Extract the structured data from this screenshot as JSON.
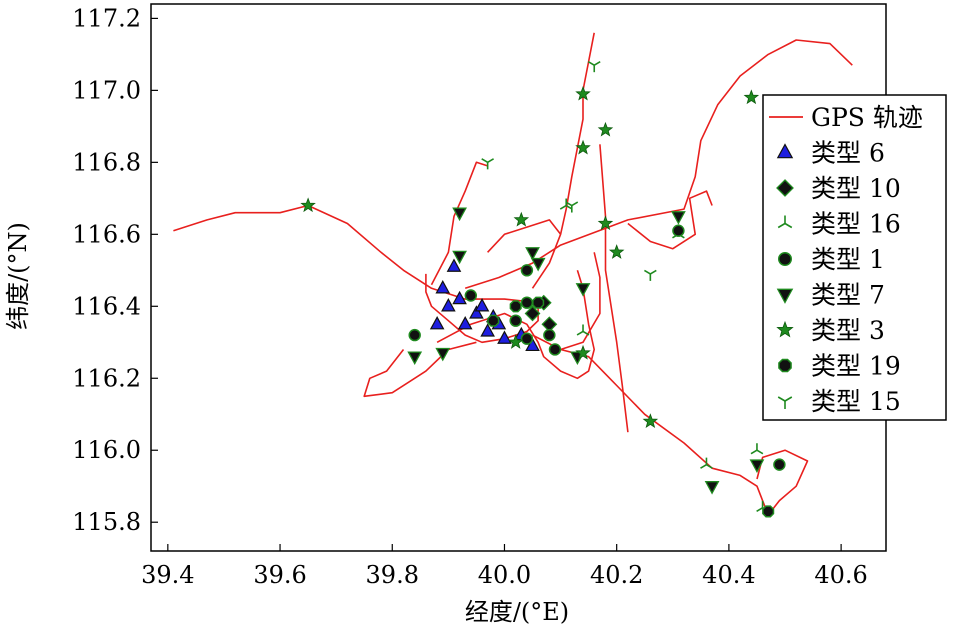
{
  "chart_data": {
    "type": "scatter",
    "xlabel": "经度/(°E)",
    "ylabel": "纬度/(°N)",
    "xlim": [
      39.37,
      40.68
    ],
    "ylim": [
      115.72,
      117.24
    ],
    "xticks": [
      "39.4",
      "39.6",
      "39.8",
      "40.0",
      "40.2",
      "40.4",
      "40.6"
    ],
    "yticks": [
      "115.8",
      "116.0",
      "116.2",
      "116.4",
      "116.6",
      "116.8",
      "117.0",
      "117.2"
    ],
    "legend_position": "right",
    "colors": {
      "track": "#e8201e",
      "blue": "#1e1ee0",
      "green": "#1f8a1f",
      "dark": "#111111"
    },
    "legend": [
      {
        "label": "GPS 轨迹",
        "marker": "line"
      },
      {
        "label": "类型 6",
        "marker": "triangle"
      },
      {
        "label": "类型 10",
        "marker": "diamond"
      },
      {
        "label": "类型 16",
        "marker": "tri-left"
      },
      {
        "label": "类型 1",
        "marker": "circle"
      },
      {
        "label": "类型 7",
        "marker": "triangle-down"
      },
      {
        "label": "类型 3",
        "marker": "star"
      },
      {
        "label": "类型 19",
        "marker": "octagon"
      },
      {
        "label": "类型 15",
        "marker": "tri-down"
      }
    ],
    "tracks": [
      [
        [
          39.41,
          116.61
        ],
        [
          39.47,
          116.64
        ],
        [
          39.52,
          116.66
        ],
        [
          39.6,
          116.66
        ],
        [
          39.65,
          116.68
        ],
        [
          39.72,
          116.63
        ],
        [
          39.78,
          116.55
        ],
        [
          39.82,
          116.5
        ],
        [
          39.87,
          116.45
        ],
        [
          39.93,
          116.42
        ],
        [
          40.0,
          116.42
        ],
        [
          40.06,
          116.41
        ]
      ],
      [
        [
          40.62,
          117.07
        ],
        [
          40.58,
          117.13
        ],
        [
          40.52,
          117.14
        ],
        [
          40.47,
          117.1
        ],
        [
          40.42,
          117.04
        ],
        [
          40.38,
          116.96
        ],
        [
          40.35,
          116.86
        ],
        [
          40.34,
          116.76
        ],
        [
          40.32,
          116.67
        ],
        [
          40.22,
          116.64
        ],
        [
          40.1,
          116.57
        ],
        [
          40.05,
          116.52
        ],
        [
          39.99,
          116.48
        ],
        [
          39.93,
          116.45
        ]
      ],
      [
        [
          40.16,
          117.16
        ],
        [
          40.15,
          117.08
        ],
        [
          40.14,
          117.0
        ],
        [
          40.14,
          116.92
        ],
        [
          40.13,
          116.84
        ],
        [
          40.12,
          116.76
        ],
        [
          40.11,
          116.67
        ],
        [
          40.1,
          116.6
        ],
        [
          40.08,
          116.52
        ],
        [
          40.05,
          116.45
        ]
      ],
      [
        [
          39.86,
          116.49
        ],
        [
          39.86,
          116.44
        ],
        [
          39.87,
          116.4
        ],
        [
          39.9,
          116.36
        ],
        [
          39.93,
          116.32
        ],
        [
          39.96,
          116.3
        ],
        [
          40.0,
          116.31
        ],
        [
          40.04,
          116.33
        ],
        [
          40.06,
          116.36
        ],
        [
          40.06,
          116.41
        ]
      ],
      [
        [
          40.05,
          116.32
        ],
        [
          40.1,
          116.28
        ],
        [
          40.15,
          116.26
        ],
        [
          40.2,
          116.18
        ],
        [
          40.25,
          116.1
        ],
        [
          40.32,
          116.02
        ],
        [
          40.37,
          115.95
        ],
        [
          40.42,
          115.93
        ],
        [
          40.45,
          115.9
        ],
        [
          40.47,
          115.82
        ],
        [
          40.49,
          115.86
        ],
        [
          40.52,
          115.9
        ],
        [
          40.54,
          115.97
        ],
        [
          40.5,
          116.0
        ],
        [
          40.46,
          115.98
        ],
        [
          40.45,
          115.92
        ]
      ],
      [
        [
          39.82,
          116.28
        ],
        [
          39.79,
          116.22
        ],
        [
          39.76,
          116.2
        ],
        [
          39.75,
          116.15
        ],
        [
          39.8,
          116.16
        ],
        [
          39.86,
          116.22
        ],
        [
          39.9,
          116.28
        ],
        [
          39.95,
          116.3
        ]
      ],
      [
        [
          40.17,
          116.85
        ],
        [
          40.18,
          116.65
        ],
        [
          40.18,
          116.5
        ],
        [
          40.19,
          116.4
        ],
        [
          40.2,
          116.3
        ],
        [
          40.21,
          116.18
        ],
        [
          40.22,
          116.05
        ]
      ],
      [
        [
          39.87,
          116.46
        ],
        [
          39.9,
          116.55
        ],
        [
          39.91,
          116.65
        ],
        [
          39.93,
          116.72
        ],
        [
          39.95,
          116.8
        ],
        [
          39.97,
          116.79
        ]
      ],
      [
        [
          40.22,
          116.63
        ],
        [
          40.26,
          116.58
        ],
        [
          40.3,
          116.56
        ],
        [
          40.34,
          116.6
        ],
        [
          40.33,
          116.7
        ],
        [
          40.36,
          116.72
        ],
        [
          40.37,
          116.68
        ]
      ],
      [
        [
          39.88,
          116.3
        ],
        [
          39.94,
          116.35
        ],
        [
          40.0,
          116.38
        ],
        [
          40.04,
          116.35
        ],
        [
          40.06,
          116.3
        ],
        [
          40.07,
          116.26
        ],
        [
          40.1,
          116.22
        ],
        [
          40.13,
          116.2
        ],
        [
          40.15,
          116.22
        ],
        [
          40.16,
          116.28
        ],
        [
          40.15,
          116.35
        ],
        [
          40.14,
          116.45
        ],
        [
          40.13,
          116.5
        ]
      ],
      [
        [
          39.97,
          116.55
        ],
        [
          40.0,
          116.6
        ],
        [
          40.04,
          116.62
        ],
        [
          40.08,
          116.64
        ],
        [
          40.1,
          116.6
        ]
      ],
      [
        [
          40.1,
          116.28
        ],
        [
          40.14,
          116.3
        ],
        [
          40.17,
          116.38
        ],
        [
          40.17,
          116.48
        ],
        [
          40.16,
          116.55
        ]
      ]
    ],
    "points": [
      {
        "type": "6",
        "marker": "triangle",
        "xy": [
          [
            39.89,
            116.45
          ],
          [
            39.91,
            116.51
          ],
          [
            39.88,
            116.35
          ],
          [
            39.92,
            116.42
          ],
          [
            39.95,
            116.38
          ],
          [
            39.97,
            116.33
          ],
          [
            39.98,
            116.37
          ],
          [
            40.0,
            116.31
          ],
          [
            39.96,
            116.4
          ],
          [
            40.03,
            116.32
          ],
          [
            40.05,
            116.29
          ],
          [
            39.99,
            116.35
          ],
          [
            39.9,
            116.4
          ],
          [
            39.93,
            116.35
          ]
        ]
      },
      {
        "type": "10",
        "marker": "diamond",
        "xy": [
          [
            40.05,
            116.38
          ],
          [
            40.07,
            116.41
          ],
          [
            40.08,
            116.35
          ]
        ]
      },
      {
        "type": "16",
        "marker": "tri-left",
        "xy": [
          [
            40.11,
            116.68
          ],
          [
            40.31,
            116.6
          ],
          [
            40.14,
            116.33
          ],
          [
            40.45,
            116.0
          ],
          [
            40.36,
            115.96
          ],
          [
            40.46,
            115.84
          ]
        ]
      },
      {
        "type": "1",
        "marker": "circle",
        "xy": [
          [
            39.84,
            116.32
          ],
          [
            39.94,
            116.43
          ],
          [
            40.04,
            116.5
          ],
          [
            40.04,
            116.41
          ],
          [
            40.08,
            116.32
          ],
          [
            40.09,
            116.28
          ],
          [
            40.04,
            116.31
          ],
          [
            40.31,
            116.61
          ],
          [
            40.49,
            115.96
          ],
          [
            40.02,
            116.36
          ]
        ]
      },
      {
        "type": "7",
        "marker": "triangle-down",
        "xy": [
          [
            39.92,
            116.66
          ],
          [
            39.92,
            116.54
          ],
          [
            40.05,
            116.55
          ],
          [
            40.06,
            116.52
          ],
          [
            39.89,
            116.27
          ],
          [
            39.84,
            116.26
          ],
          [
            40.31,
            116.65
          ],
          [
            40.14,
            116.45
          ],
          [
            40.37,
            115.9
          ],
          [
            40.45,
            115.96
          ],
          [
            40.13,
            116.26
          ]
        ]
      },
      {
        "type": "3",
        "marker": "star",
        "xy": [
          [
            39.65,
            116.68
          ],
          [
            40.03,
            116.64
          ],
          [
            40.14,
            116.99
          ],
          [
            40.14,
            116.84
          ],
          [
            40.18,
            116.89
          ],
          [
            40.18,
            116.63
          ],
          [
            40.26,
            116.08
          ],
          [
            40.44,
            116.98
          ],
          [
            40.14,
            116.27
          ],
          [
            40.02,
            116.3
          ],
          [
            40.2,
            116.55
          ]
        ]
      },
      {
        "type": "19",
        "marker": "octagon",
        "xy": [
          [
            40.06,
            116.41
          ],
          [
            40.02,
            116.4
          ],
          [
            39.98,
            116.36
          ],
          [
            40.47,
            115.83
          ]
        ]
      },
      {
        "type": "15",
        "marker": "tri-down",
        "xy": [
          [
            40.16,
            117.07
          ],
          [
            39.97,
            116.8
          ],
          [
            40.26,
            116.49
          ],
          [
            40.12,
            116.68
          ]
        ]
      }
    ]
  }
}
